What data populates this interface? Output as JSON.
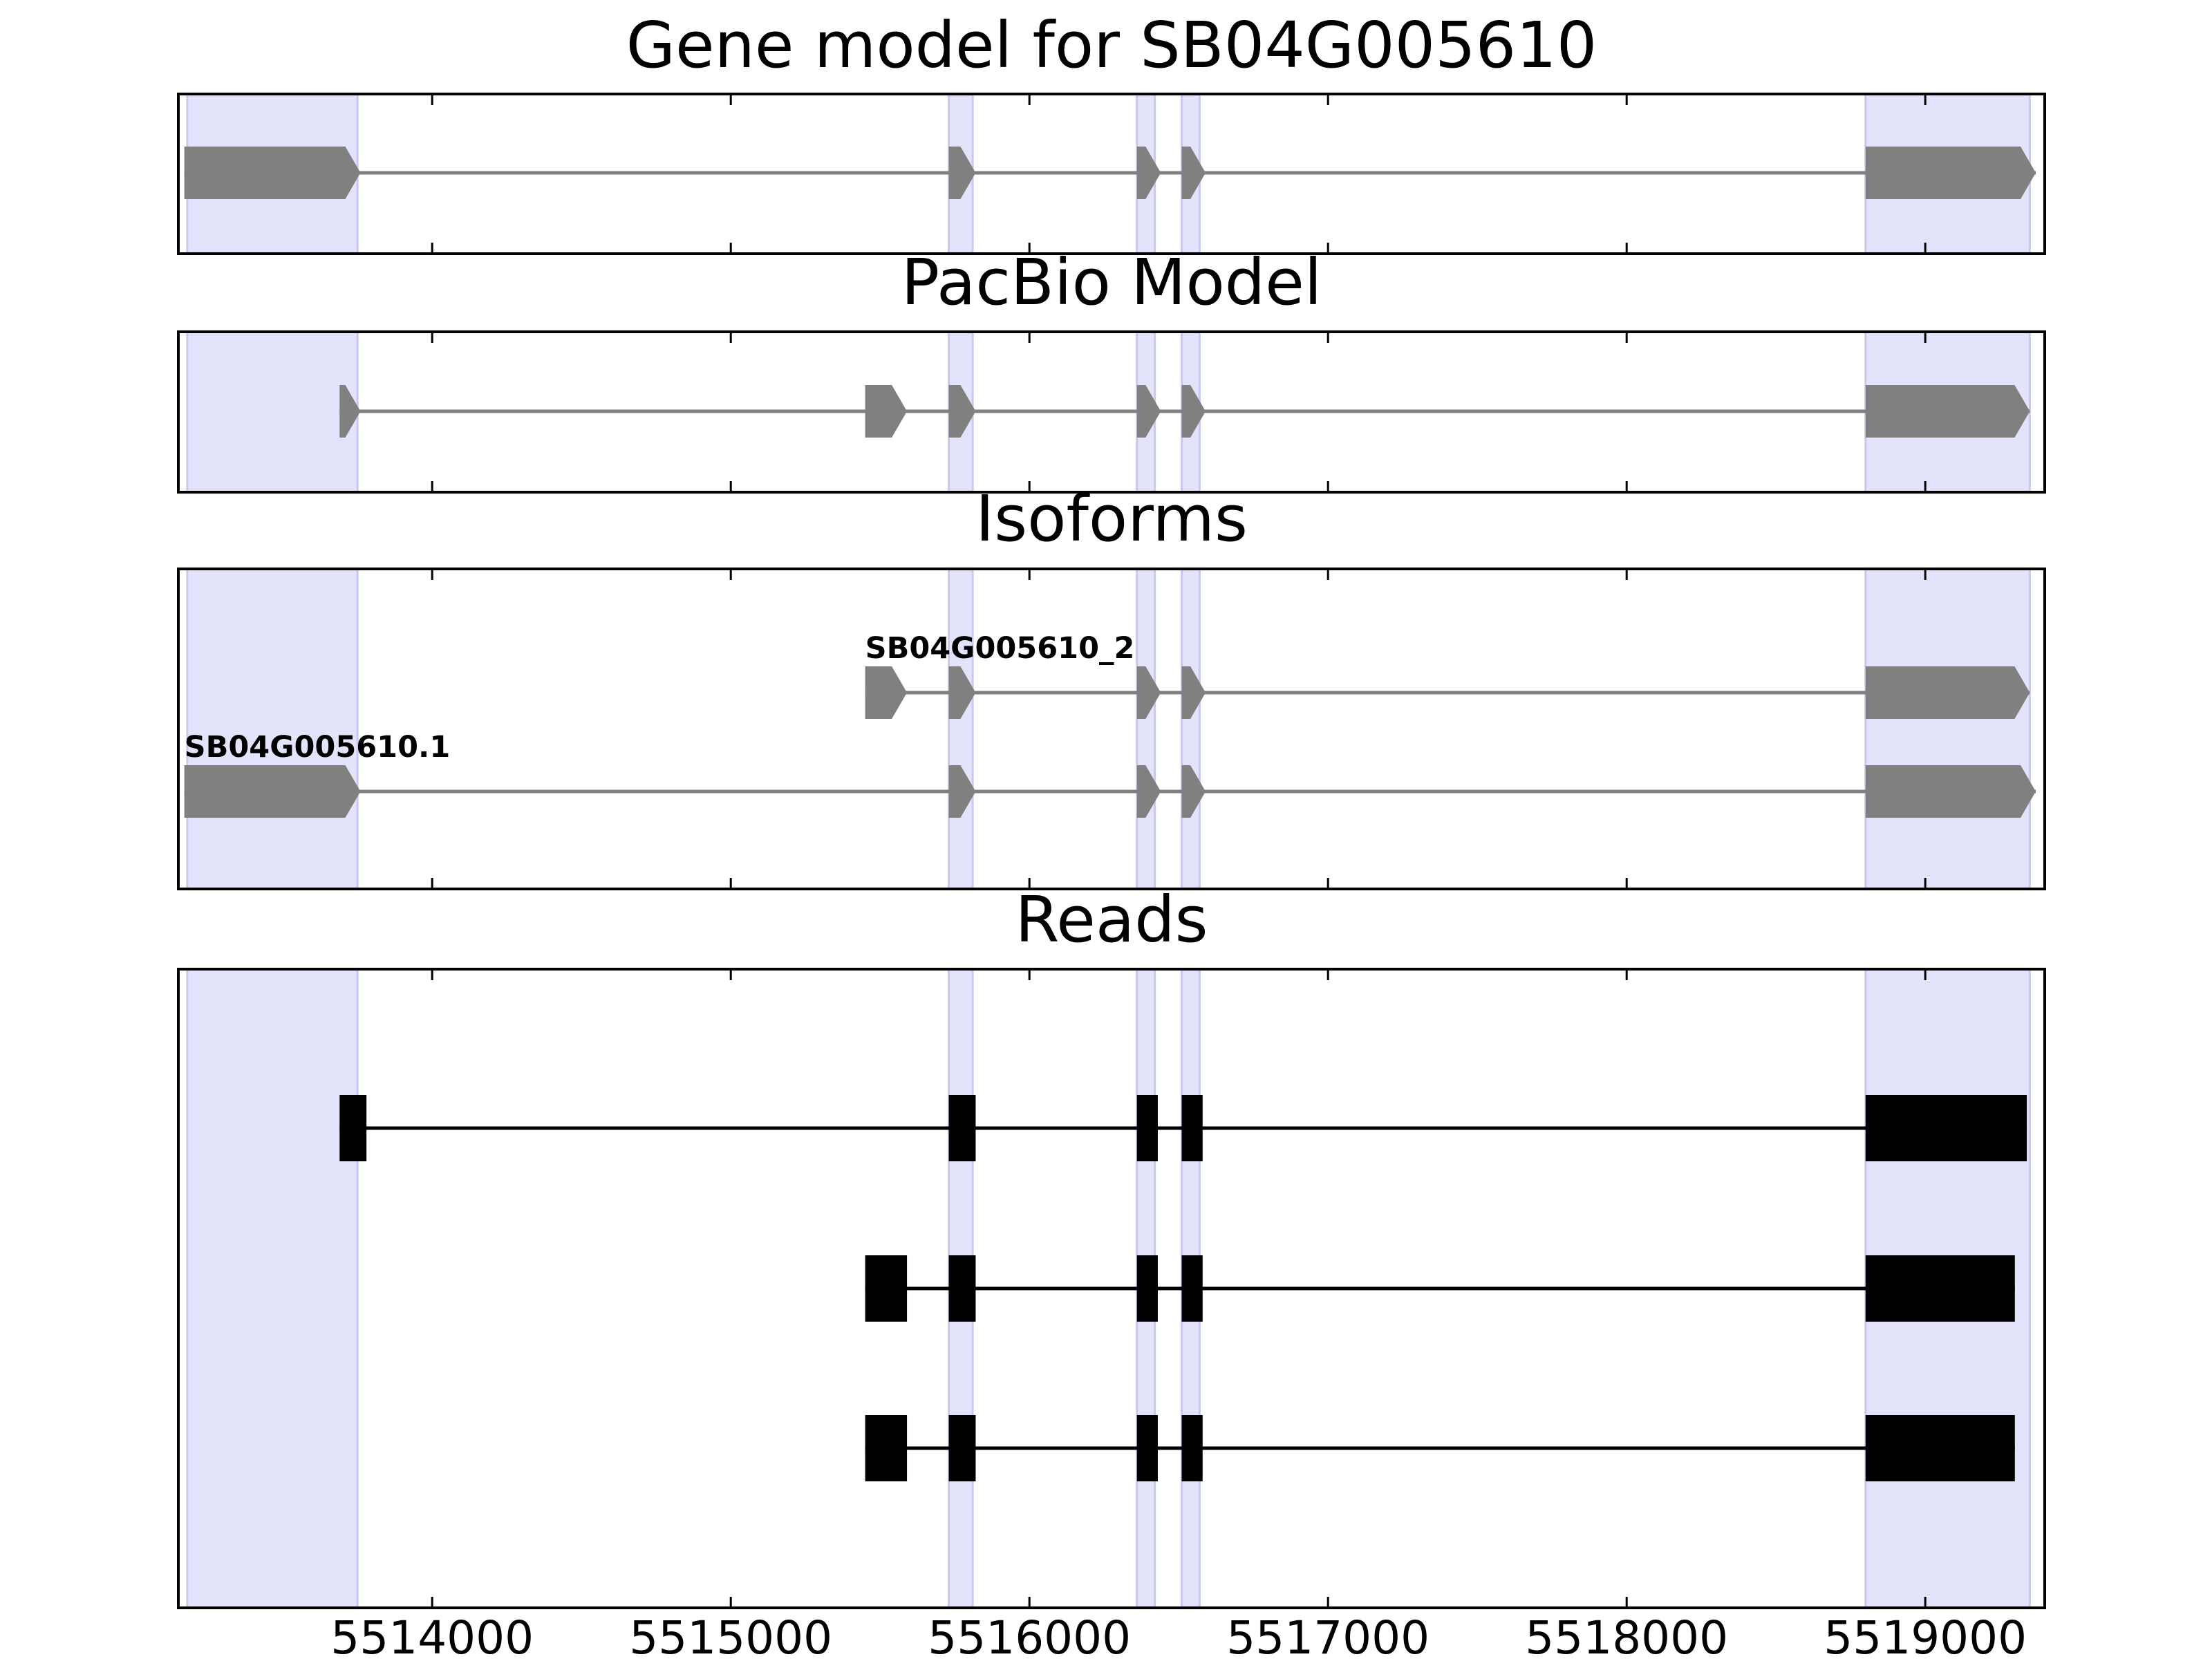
{
  "chart_data": {
    "type": "gene-structure",
    "x_ticks": [
      5514000,
      5515000,
      5516000,
      5517000,
      5518000,
      5519000
    ],
    "xlim": [
      5513150,
      5519400
    ],
    "exon_regions": [
      [
        5513180,
        5513750
      ],
      [
        5515730,
        5515810
      ],
      [
        5516360,
        5516420
      ],
      [
        5516510,
        5516570
      ],
      [
        5518800,
        5519350
      ]
    ],
    "colors": {
      "highlight": "#e3e3fc",
      "highlight_edge": "#c9c9ef",
      "model": "#808080",
      "read": "#000000",
      "frame": "#000000"
    },
    "panels": [
      {
        "title": "Gene model for SB04G005610",
        "style": "arrow",
        "tracks": [
          {
            "exons": [
              [
                5513170,
                5513760
              ],
              [
                5515730,
                5515820
              ],
              [
                5516360,
                5516440
              ],
              [
                5516510,
                5516590
              ],
              [
                5518800,
                5519370
              ]
            ]
          }
        ]
      },
      {
        "title": "PacBio Model",
        "style": "arrow",
        "tracks": [
          {
            "exons": [
              [
                5513690,
                5513760
              ],
              [
                5515450,
                5515590
              ],
              [
                5515730,
                5515820
              ],
              [
                5516360,
                5516440
              ],
              [
                5516510,
                5516590
              ],
              [
                5518800,
                5519350
              ]
            ]
          }
        ]
      },
      {
        "title": "Isoforms",
        "style": "arrow",
        "tracks": [
          {
            "label": "SB04G005610_2",
            "exons": [
              [
                5515450,
                5515590
              ],
              [
                5515730,
                5515820
              ],
              [
                5516360,
                5516440
              ],
              [
                5516510,
                5516590
              ],
              [
                5518800,
                5519350
              ]
            ]
          },
          {
            "label": "SB04G005610.1",
            "exons": [
              [
                5513170,
                5513760
              ],
              [
                5515730,
                5515820
              ],
              [
                5516360,
                5516440
              ],
              [
                5516510,
                5516590
              ],
              [
                5518800,
                5519370
              ]
            ]
          }
        ]
      },
      {
        "title": "Reads",
        "style": "box",
        "tracks": [
          {
            "exons": [
              [
                5513690,
                5513780
              ],
              [
                5515730,
                5515820
              ],
              [
                5516360,
                5516430
              ],
              [
                5516510,
                5516580
              ],
              [
                5518800,
                5519340
              ]
            ]
          },
          {
            "exons": [
              [
                5515450,
                5515590
              ],
              [
                5515730,
                5515820
              ],
              [
                5516360,
                5516430
              ],
              [
                5516510,
                5516580
              ],
              [
                5518800,
                5519300
              ]
            ]
          },
          {
            "exons": [
              [
                5515450,
                5515590
              ],
              [
                5515730,
                5515820
              ],
              [
                5516360,
                5516430
              ],
              [
                5516510,
                5516580
              ],
              [
                5518800,
                5519300
              ]
            ]
          }
        ]
      }
    ]
  }
}
